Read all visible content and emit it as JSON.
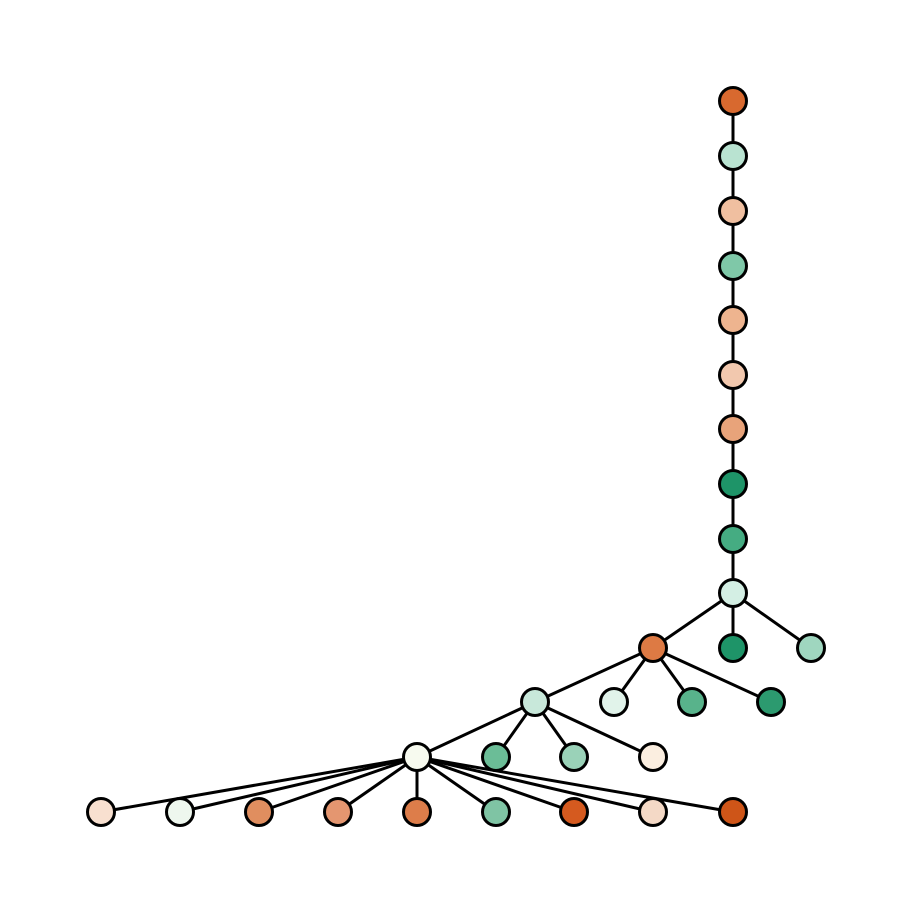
{
  "nodes": [
    {
      "color": "#d8692f"
    },
    {
      "color": "#b9e3d1"
    },
    {
      "color": "#f0bfa0"
    },
    {
      "color": "#7fc8a8"
    },
    {
      "color": "#eeb48f"
    },
    {
      "color": "#f2c8ae"
    },
    {
      "color": "#e8a37a"
    },
    {
      "color": "#1e9468"
    },
    {
      "color": "#45ac82"
    },
    {
      "color": "#d4efe4"
    },
    {
      "color": "#dd7a44"
    },
    {
      "color": "#1e9468"
    },
    {
      "color": "#9fd6bf"
    },
    {
      "color": "#c8e8da"
    },
    {
      "color": "#e1f3ea"
    },
    {
      "color": "#58b38b"
    },
    {
      "color": "#2c9a6f"
    },
    {
      "color": "#f7faef"
    },
    {
      "color": "#6bbd97"
    },
    {
      "color": "#9ad2b8"
    },
    {
      "color": "#fbeee0"
    },
    {
      "color": "#f8e0d0"
    },
    {
      "color": "#eef7ee"
    },
    {
      "color": "#e08e5f"
    },
    {
      "color": "#e49670"
    },
    {
      "color": "#dd7d4a"
    },
    {
      "color": "#7fc4a4"
    },
    {
      "color": "#d55a1f"
    },
    {
      "color": "#f4d9c6"
    },
    {
      "color": "#ce5518"
    }
  ],
  "edges": [
    [
      0,
      1
    ],
    [
      1,
      2
    ],
    [
      2,
      3
    ],
    [
      3,
      4
    ],
    [
      4,
      5
    ],
    [
      5,
      6
    ],
    [
      6,
      7
    ],
    [
      7,
      8
    ],
    [
      8,
      9
    ],
    [
      9,
      10
    ],
    [
      9,
      11
    ],
    [
      9,
      12
    ],
    [
      10,
      13
    ],
    [
      10,
      14
    ],
    [
      10,
      15
    ],
    [
      10,
      16
    ],
    [
      13,
      17
    ],
    [
      13,
      18
    ],
    [
      13,
      19
    ],
    [
      13,
      20
    ],
    [
      17,
      21
    ],
    [
      17,
      22
    ],
    [
      17,
      23
    ],
    [
      17,
      24
    ],
    [
      17,
      25
    ],
    [
      17,
      26
    ],
    [
      17,
      27
    ],
    [
      17,
      28
    ],
    [
      17,
      29
    ]
  ]
}
